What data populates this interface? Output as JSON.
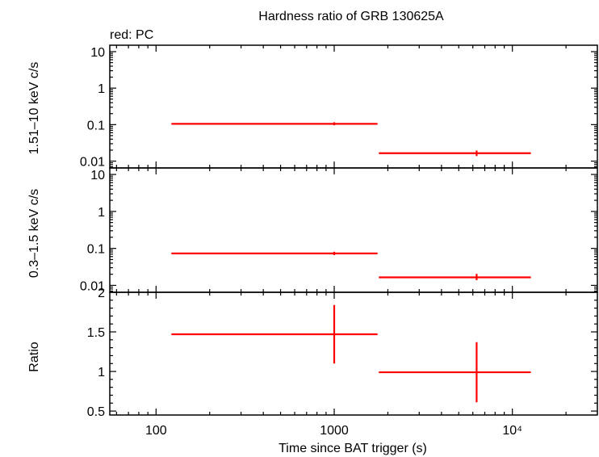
{
  "chart_data": {
    "title": "Hardness ratio of GRB 130625A",
    "annotation": "red: PC",
    "xlabel": "Time since BAT trigger (s)",
    "xscale": "log",
    "xlim": [
      55,
      30000
    ],
    "x_ticks": [
      {
        "value": 100,
        "label": "100"
      },
      {
        "value": 1000,
        "label": "1000"
      },
      {
        "value": 10000,
        "label": "10⁴"
      }
    ],
    "color": "#ff0000",
    "panels": [
      {
        "id": "hard",
        "type": "scatter",
        "ylabel": "1.51–10 keV c/s",
        "yscale": "log",
        "ylim": [
          0.0065,
          15
        ],
        "y_ticks": [
          {
            "value": 10,
            "label": "10"
          },
          {
            "value": 1,
            "label": "1"
          },
          {
            "value": 0.1,
            "label": "0.1"
          },
          {
            "value": 0.01,
            "label": "0.01"
          }
        ],
        "points": [
          {
            "x": 1000,
            "x_lo": 122,
            "x_hi": 1750,
            "y": 0.105,
            "y_lo": 0.096,
            "y_hi": 0.116
          },
          {
            "x": 6300,
            "x_lo": 1780,
            "x_hi": 12700,
            "y": 0.0165,
            "y_lo": 0.0138,
            "y_hi": 0.0195
          }
        ]
      },
      {
        "id": "soft",
        "type": "scatter",
        "ylabel": "0.3–1.5 keV c/s",
        "yscale": "log",
        "ylim": [
          0.0065,
          15
        ],
        "y_ticks": [
          {
            "value": 10,
            "label": "10"
          },
          {
            "value": 1,
            "label": "1"
          },
          {
            "value": 0.1,
            "label": "0.1"
          },
          {
            "value": 0.01,
            "label": "0.01"
          }
        ],
        "points": [
          {
            "x": 1000,
            "x_lo": 122,
            "x_hi": 1750,
            "y": 0.073,
            "y_lo": 0.066,
            "y_hi": 0.081
          },
          {
            "x": 6300,
            "x_lo": 1780,
            "x_hi": 12700,
            "y": 0.0165,
            "y_lo": 0.0138,
            "y_hi": 0.0205
          }
        ]
      },
      {
        "id": "ratio",
        "type": "scatter",
        "ylabel": "Ratio",
        "yscale": "linear",
        "ylim": [
          0.45,
          2.0
        ],
        "y_ticks": [
          {
            "value": 2,
            "label": "2"
          },
          {
            "value": 1.5,
            "label": "1.5"
          },
          {
            "value": 1,
            "label": "1"
          },
          {
            "value": 0.5,
            "label": "0.5"
          }
        ],
        "points": [
          {
            "x": 1000,
            "x_lo": 122,
            "x_hi": 1750,
            "y": 1.47,
            "y_lo": 1.1,
            "y_hi": 1.84
          },
          {
            "x": 6300,
            "x_lo": 1780,
            "x_hi": 12700,
            "y": 0.99,
            "y_lo": 0.61,
            "y_hi": 1.37
          }
        ]
      }
    ]
  }
}
